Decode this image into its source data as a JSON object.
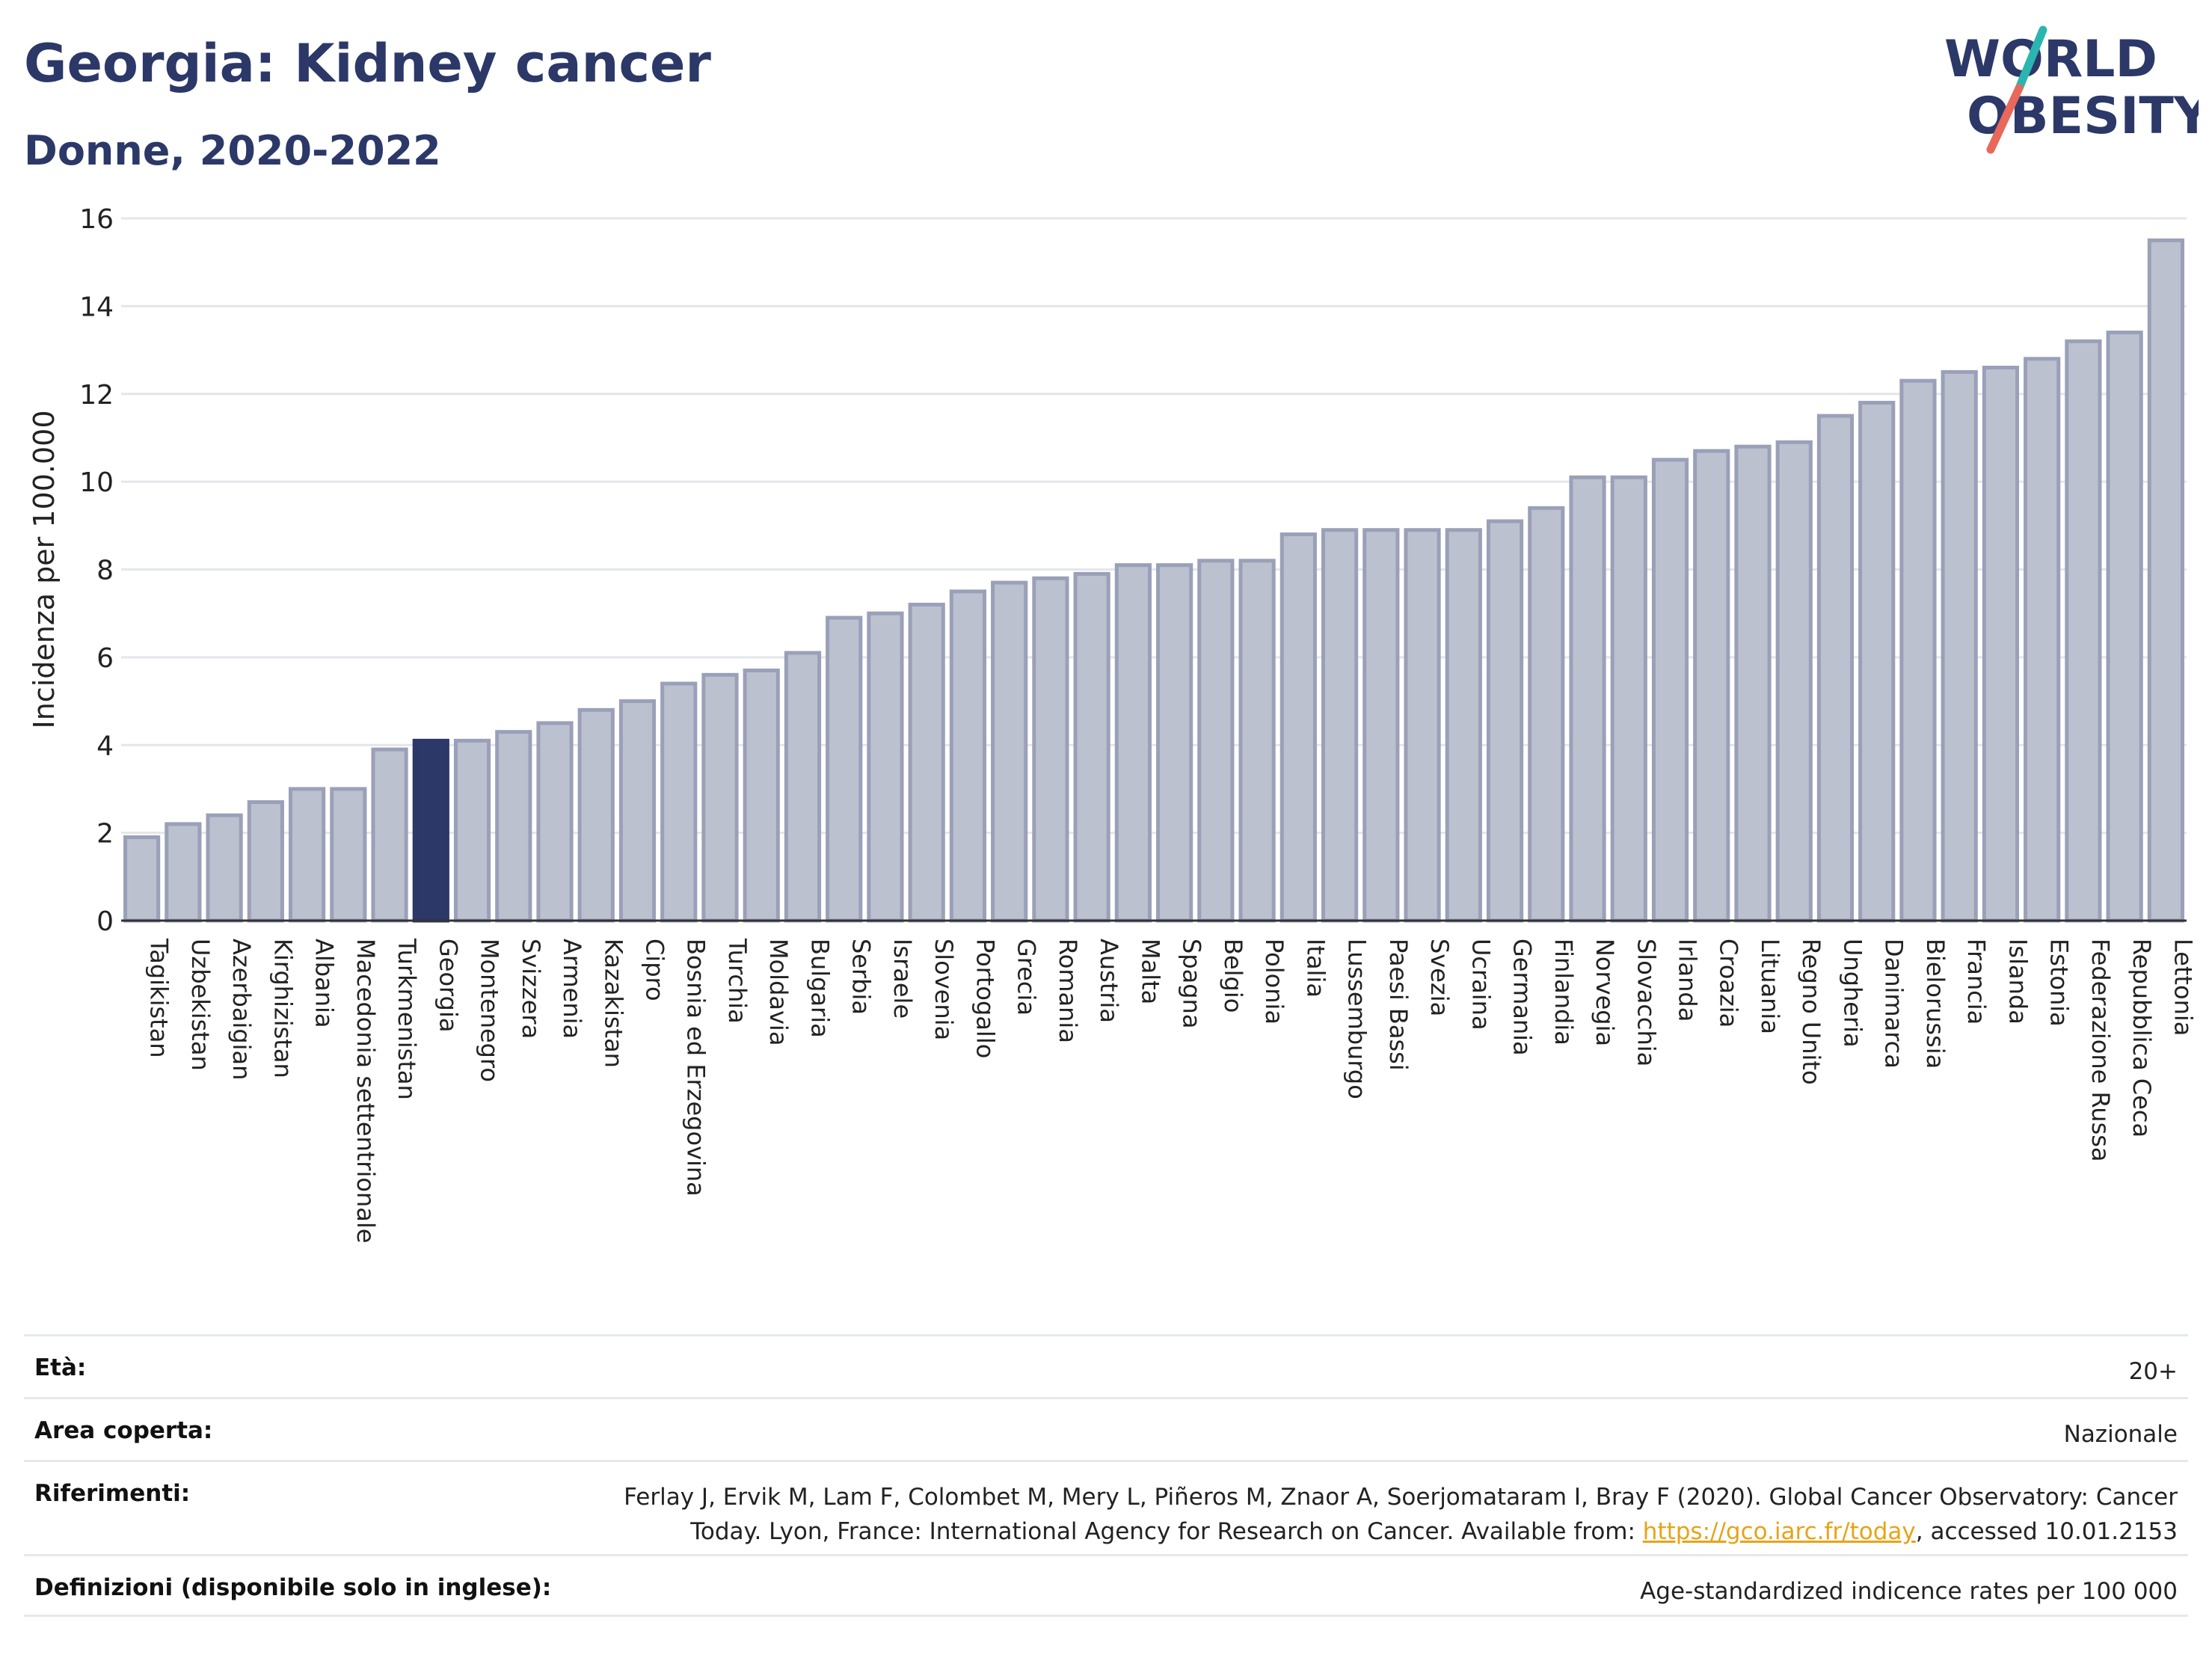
{
  "header": {
    "title": "Georgia: Kidney cancer",
    "subtitle": "Donne, 2020-2022"
  },
  "logo": {
    "line1": "WORLD",
    "line2": "OBESITY",
    "colors": {
      "text": "#2b3868",
      "slash_top": "#2bb5b0",
      "slash_bottom": "#e8685c"
    }
  },
  "colors": {
    "bar": "#bcc1d0",
    "bar_border": "#9aa0b8",
    "highlight": "#2b3868",
    "grid": "#e4e6ec"
  },
  "chart_data": {
    "type": "bar",
    "ylabel": "Incidenza per 100.000",
    "ylim": [
      0,
      16
    ],
    "yticks": [
      0,
      2,
      4,
      6,
      8,
      10,
      12,
      14,
      16
    ],
    "grid": true,
    "highlight": "Georgia",
    "categories": [
      "Tagikistan",
      "Uzbekistan",
      "Azerbaigian",
      "Kirghizistan",
      "Albania",
      "Macedonia settentrionale",
      "Turkmenistan",
      "Georgia",
      "Montenegro",
      "Svizzera",
      "Armenia",
      "Kazakistan",
      "Cipro",
      "Bosnia ed Erzegovina",
      "Turchia",
      "Moldavia",
      "Bulgaria",
      "Serbia",
      "Israele",
      "Slovenia",
      "Portogallo",
      "Grecia",
      "Romania",
      "Austria",
      "Malta",
      "Spagna",
      "Belgio",
      "Polonia",
      "Italia",
      "Lussemburgo",
      "Paesi Bassi",
      "Svezia",
      "Ucraina",
      "Germania",
      "Finlandia",
      "Norvegia",
      "Slovacchia",
      "Irlanda",
      "Croazia",
      "Lituania",
      "Regno Unito",
      "Ungheria",
      "Danimarca",
      "Bielorussia",
      "Francia",
      "Islanda",
      "Estonia",
      "Federazione Russa",
      "Repubblica Ceca",
      "Lettonia"
    ],
    "values": [
      1.9,
      2.2,
      2.4,
      2.7,
      3.0,
      3.0,
      3.9,
      4.1,
      4.1,
      4.3,
      4.5,
      4.8,
      5.0,
      5.4,
      5.6,
      5.7,
      6.1,
      6.9,
      7.0,
      7.2,
      7.5,
      7.7,
      7.8,
      7.9,
      8.1,
      8.1,
      8.2,
      8.2,
      8.8,
      8.9,
      8.9,
      8.9,
      8.9,
      9.1,
      9.4,
      10.1,
      10.1,
      10.5,
      10.7,
      10.8,
      10.9,
      11.5,
      11.8,
      12.3,
      12.5,
      12.6,
      12.8,
      13.2,
      13.4,
      15.5
    ]
  },
  "meta": {
    "age": {
      "label": "Età:",
      "value": "20+"
    },
    "area": {
      "label": "Area coperta:",
      "value": "Nazionale"
    },
    "references": {
      "label": "Riferimenti:",
      "text1": "Ferlay J, Ervik M, Lam F, Colombet M, Mery L, Piñeros M, Znaor A, Soerjomataram I, Bray F (2020). Global Cancer Observatory: Cancer",
      "text2": "Today. Lyon, France: International Agency for Research on Cancer. Available from: ",
      "link": "https://gco.iarc.fr/today",
      "text3": ", accessed 10.01.2153"
    },
    "definitions": {
      "label": "Definizioni (disponibile solo in inglese):",
      "value": "Age-standardized indicence rates per 100 000"
    }
  }
}
